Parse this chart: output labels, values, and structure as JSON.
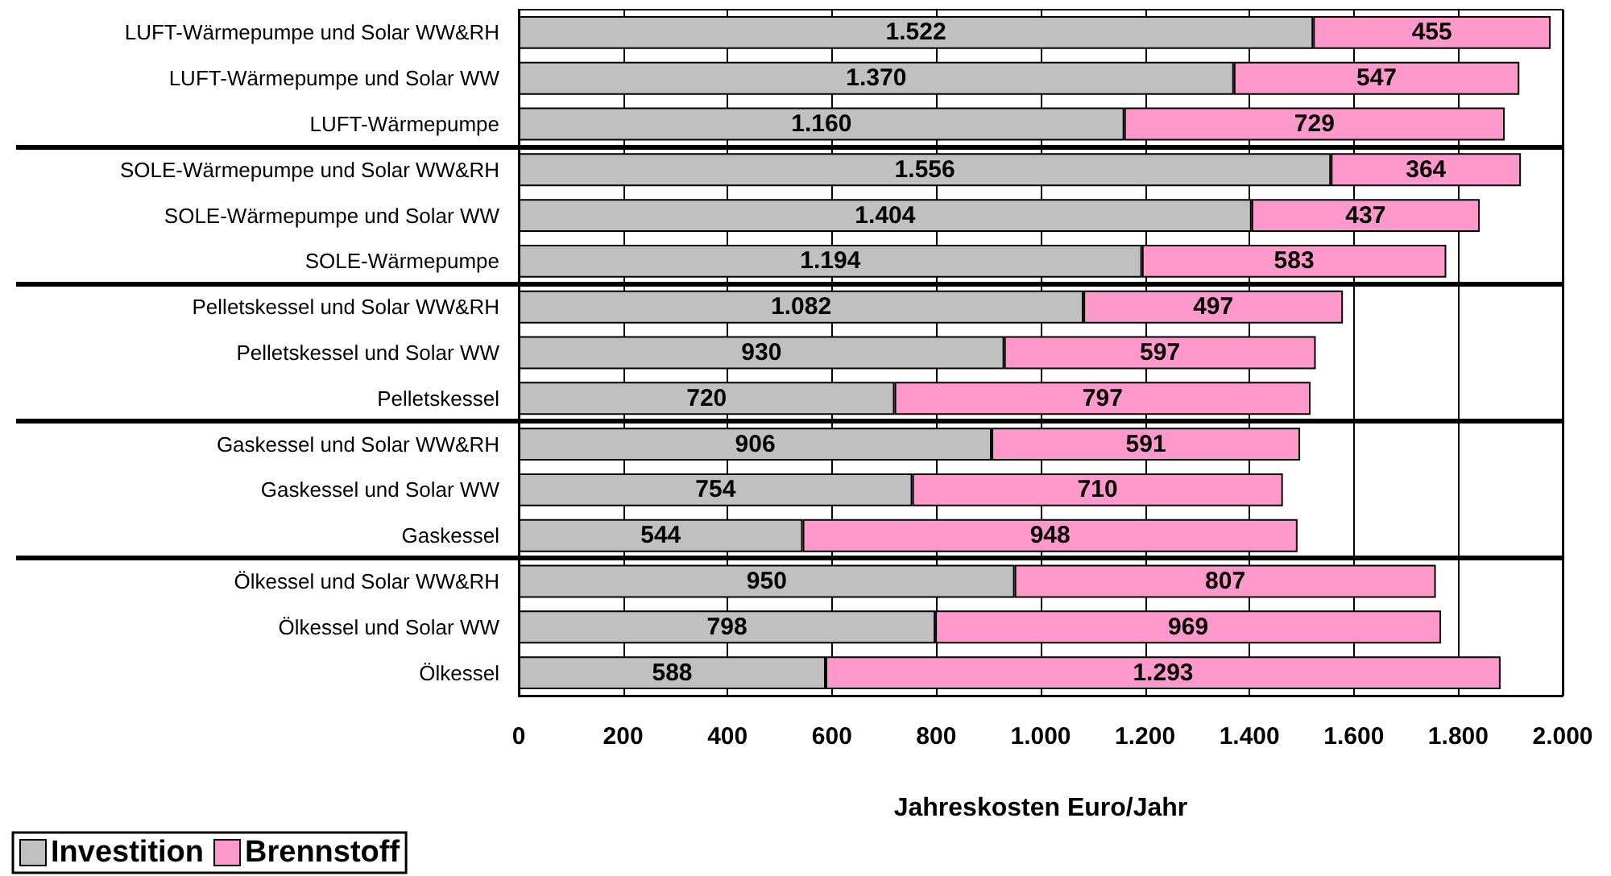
{
  "chart_data": {
    "type": "bar",
    "orientation": "horizontal",
    "stacked": true,
    "xlabel": "Jahreskosten Euro/Jahr",
    "categories": [
      "LUFT-Wärmepumpe und Solar WW&RH",
      "LUFT-Wärmepumpe und Solar WW",
      "LUFT-Wärmepumpe",
      "SOLE-Wärmepumpe und Solar WW&RH",
      "SOLE-Wärmepumpe und Solar WW",
      "SOLE-Wärmepumpe",
      "Pelletskessel und Solar WW&RH",
      "Pelletskessel und Solar WW",
      "Pelletskessel",
      "Gaskessel und Solar WW&RH",
      "Gaskessel und Solar WW",
      "Gaskessel",
      "Ölkessel und Solar WW&RH",
      "Ölkessel und Solar WW",
      "Ölkessel"
    ],
    "series": [
      {
        "name": "Investition",
        "color": "#c0c0c0",
        "values": [
          1522,
          1370,
          1160,
          1556,
          1404,
          1194,
          1082,
          930,
          720,
          906,
          754,
          544,
          950,
          798,
          588
        ],
        "value_labels": [
          "1.522",
          "1.370",
          "1.160",
          "1.556",
          "1.404",
          "1.194",
          "1.082",
          "930",
          "720",
          "906",
          "754",
          "544",
          "950",
          "798",
          "588"
        ]
      },
      {
        "name": "Brennstoff",
        "color": "#ff99cc",
        "values": [
          455,
          547,
          729,
          364,
          437,
          583,
          497,
          597,
          797,
          591,
          710,
          948,
          807,
          969,
          1293
        ],
        "value_labels": [
          "455",
          "547",
          "729",
          "364",
          "437",
          "583",
          "497",
          "597",
          "797",
          "591",
          "710",
          "948",
          "807",
          "969",
          "1.293"
        ]
      }
    ],
    "xlim": [
      0,
      2000
    ],
    "xticks": [
      0,
      200,
      400,
      600,
      800,
      {
        "value": 1000,
        "label": "1.000"
      },
      {
        "value": 1200,
        "label": "1.200"
      },
      {
        "value": 1400,
        "label": "1.400"
      },
      {
        "value": 1600,
        "label": "1.600"
      },
      {
        "value": 1800,
        "label": "1.800"
      },
      {
        "value": 2000,
        "label": "2.000"
      }
    ],
    "grid": "x",
    "legend": "bottom left"
  }
}
